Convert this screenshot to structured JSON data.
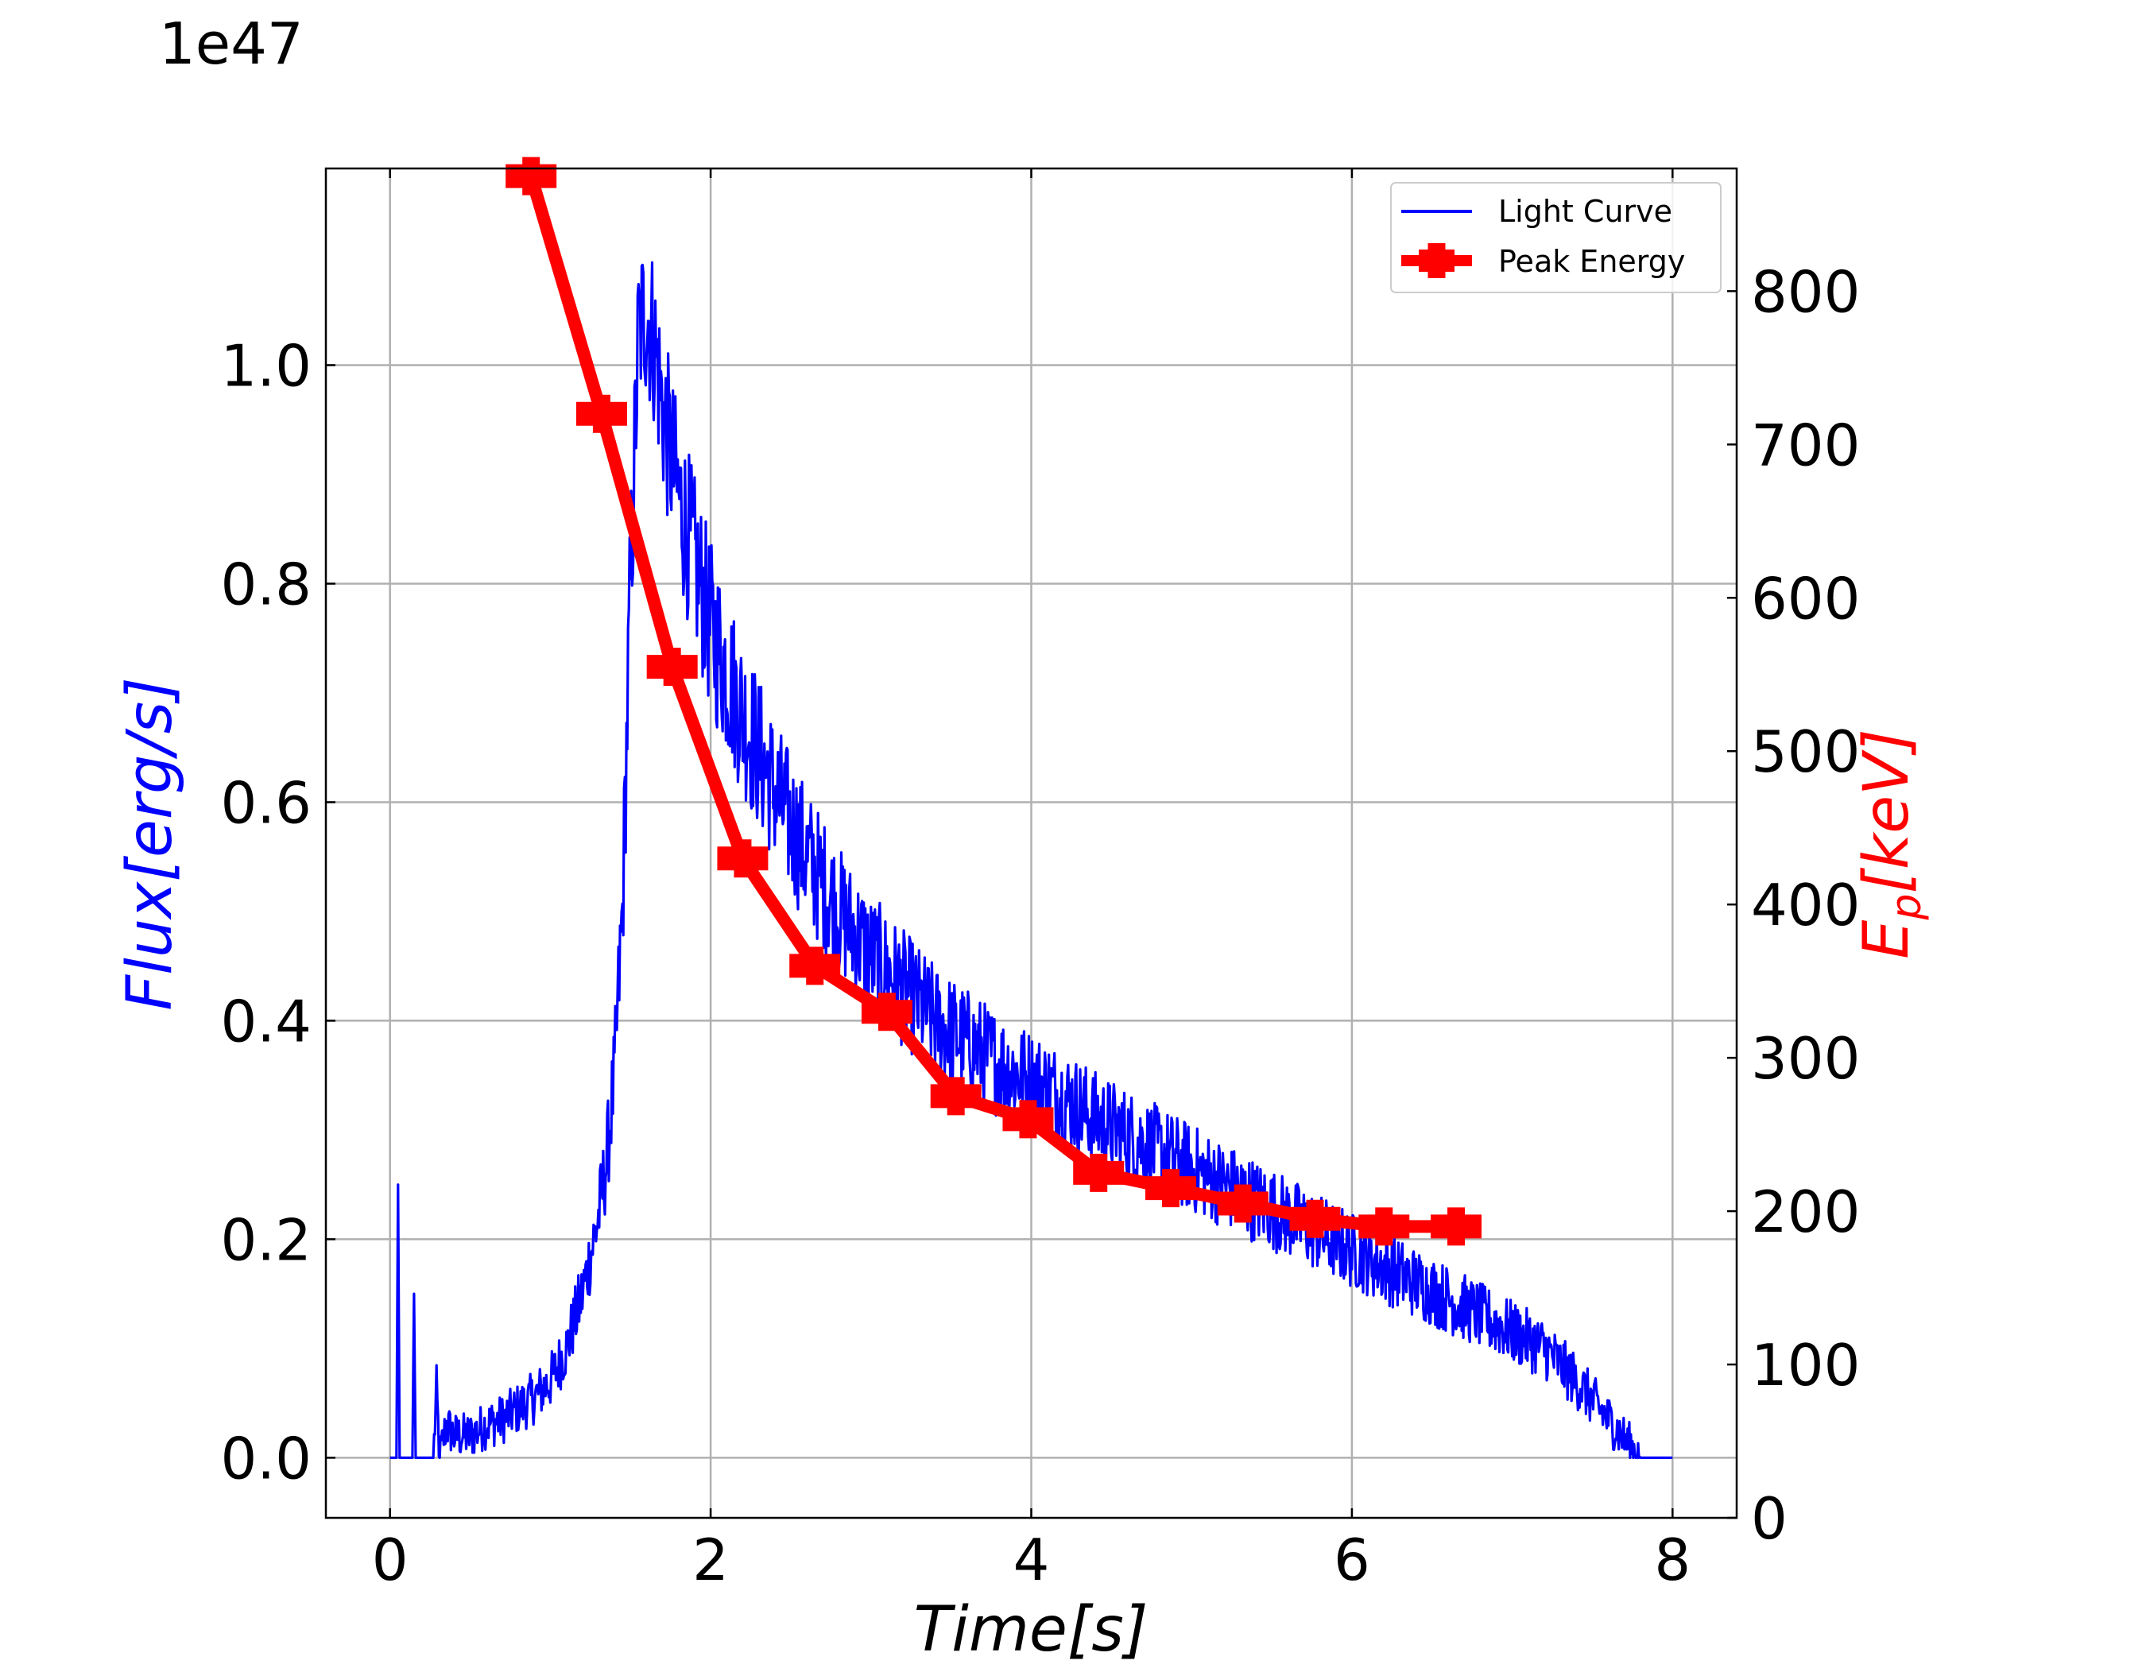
{
  "chart_data": {
    "type": "line",
    "title": "",
    "xlabel": "Time[s]",
    "ylabel_left": "Flux[erg/s]",
    "ylabel_right": "E_p[keV]",
    "y_offset_text": "1e47",
    "xlim": [
      -0.4,
      8.4
    ],
    "ylim_left": [
      -0.055,
      1.18
    ],
    "ylim_right": [
      0,
      880
    ],
    "x_ticks": [
      0,
      2,
      4,
      6,
      8
    ],
    "y_left_ticks": [
      0.0,
      0.2,
      0.4,
      0.6,
      0.8,
      1.0
    ],
    "y_right_ticks": [
      0,
      100,
      200,
      300,
      400,
      500,
      600,
      700,
      800
    ],
    "grid": true,
    "legend_position": "upper-right",
    "legend": [
      "Light Curve",
      "Peak Energy"
    ],
    "series": [
      {
        "name": "Light Curve",
        "axis": "left",
        "color": "#0000ff",
        "style": "noisy-line",
        "x": [
          0.0,
          0.04,
          0.05,
          0.06,
          0.1,
          0.14,
          0.15,
          0.16,
          0.2,
          0.27,
          0.29,
          0.31,
          0.35,
          0.4,
          0.5,
          0.6,
          0.7,
          0.8,
          0.9,
          1.0,
          1.1,
          1.2,
          1.3,
          1.35,
          1.4,
          1.45,
          1.5,
          1.55,
          1.6,
          1.65,
          1.7,
          1.8,
          1.9,
          2.0,
          2.2,
          2.4,
          2.6,
          2.8,
          3.0,
          3.2,
          3.4,
          3.6,
          3.8,
          4.0,
          4.2,
          4.4,
          4.6,
          4.8,
          5.0,
          5.2,
          5.4,
          5.6,
          5.8,
          6.0,
          6.2,
          6.4,
          6.6,
          6.8,
          7.0,
          7.2,
          7.4,
          7.6,
          7.8,
          8.0
        ],
        "y": [
          0.0,
          0.0,
          0.25,
          0.0,
          0.0,
          0.0,
          0.15,
          0.0,
          0.0,
          0.0,
          0.06,
          0.0,
          0.03,
          0.02,
          0.02,
          0.03,
          0.035,
          0.045,
          0.055,
          0.07,
          0.1,
          0.15,
          0.22,
          0.27,
          0.35,
          0.5,
          0.8,
          1.03,
          1.05,
          1.02,
          0.96,
          0.88,
          0.82,
          0.76,
          0.68,
          0.61,
          0.55,
          0.5,
          0.46,
          0.43,
          0.4,
          0.38,
          0.36,
          0.345,
          0.33,
          0.31,
          0.295,
          0.28,
          0.265,
          0.25,
          0.235,
          0.22,
          0.205,
          0.19,
          0.175,
          0.16,
          0.145,
          0.13,
          0.115,
          0.1,
          0.07,
          0.035,
          0.0,
          0.0
        ]
      },
      {
        "name": "Peak Energy",
        "axis": "right",
        "color": "#ff0000",
        "style": "line-with-plus-markers",
        "x": [
          0.88,
          1.32,
          1.76,
          2.2,
          2.65,
          3.1,
          3.53,
          3.98,
          4.42,
          4.87,
          5.32,
          5.77,
          6.2,
          6.65
        ],
        "y": [
          875,
          720,
          555,
          430,
          360,
          330,
          275,
          260,
          225,
          215,
          205,
          195,
          190,
          190
        ]
      }
    ]
  }
}
